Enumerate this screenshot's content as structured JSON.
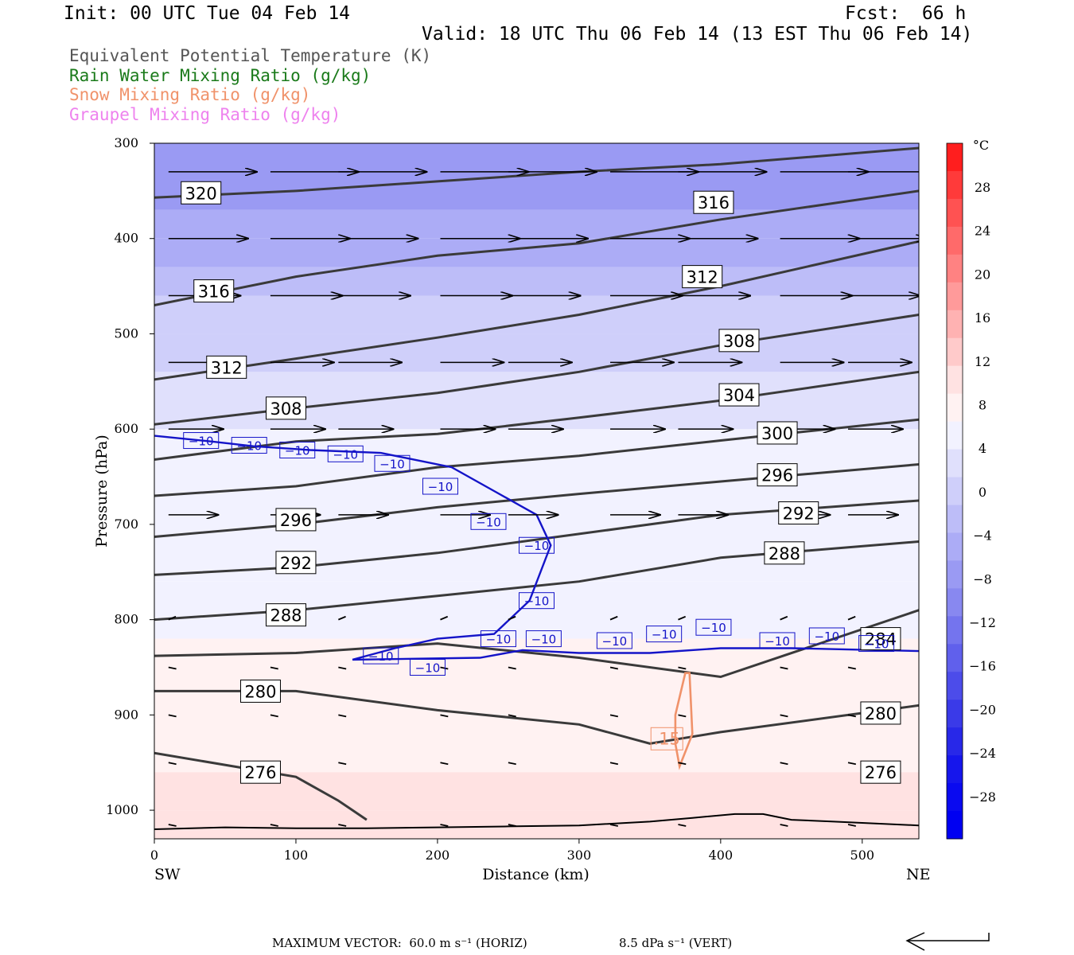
{
  "header": {
    "init": "Init: 00 UTC Tue 04 Feb 14",
    "fcst": "Fcst:  66 h",
    "valid": "Valid: 18 UTC Thu 06 Feb 14 (13 EST Thu 06 Feb 14)"
  },
  "legend": [
    {
      "label": "Equivalent Potential Temperature (K)",
      "color": "#555555"
    },
    {
      "label": "Rain Water Mixing Ratio (g/kg)",
      "color": "#1a7a1a"
    },
    {
      "label": "Snow Mixing Ratio (g/kg)",
      "color": "#f0926a"
    },
    {
      "label": "Graupel Mixing Ratio (g/kg)",
      "color": "#ee82ee"
    }
  ],
  "footer": {
    "vector_label": "MAXIMUM VECTOR:",
    "horiz": "60.0 m s⁻¹ (HORIZ)",
    "vert": "8.5 dPa s⁻¹ (VERT)"
  },
  "chart_data": {
    "type": "cross-section",
    "xlabel": "Distance (km)",
    "ylabel": "Pressure (hPa)",
    "xlim": [
      0,
      540
    ],
    "ylim": [
      1030,
      300
    ],
    "x_ticks": [
      0,
      100,
      200,
      300,
      400,
      500
    ],
    "y_ticks": [
      300,
      400,
      500,
      600,
      700,
      800,
      900,
      1000
    ],
    "x_end_labels": {
      "left": "SW",
      "right": "NE"
    },
    "colorbar": {
      "unit": "°C",
      "labels": [
        "28",
        "24",
        "20",
        "16",
        "12",
        "8",
        "4",
        "0",
        "−4",
        "−8",
        "−12",
        "−16",
        "−20",
        "−24",
        "−28"
      ],
      "levels": [
        28,
        24,
        20,
        16,
        12,
        8,
        4,
        0,
        -4,
        -8,
        -12,
        -16,
        -20,
        -24,
        -28
      ],
      "warm_colors": [
        "#ff1e1e",
        "#ff3a3a",
        "#ff5252",
        "#ff6a6a",
        "#ff8282",
        "#ff9a9a",
        "#ffb2b2",
        "#ffcaca",
        "#ffe2e2",
        "#fff2f2"
      ],
      "cold_colors": [
        "#f2f2ff",
        "#e0e0fc",
        "#cfcffa",
        "#bdbdf8",
        "#acacf6",
        "#9a9af3",
        "#8888f0",
        "#7474ee",
        "#6060ec",
        "#4c4cea",
        "#3a3ae8",
        "#2828e8",
        "#1616ec",
        "#0a0af0",
        "#0000f2"
      ]
    },
    "temperature_bands": [
      {
        "p": [
          1030,
          1000
        ],
        "temp_c": -2
      },
      {
        "p": [
          1000,
          960
        ],
        "temp_c": -5
      },
      {
        "p": [
          960,
          900
        ],
        "temp_c": -7
      },
      {
        "p": [
          900,
          820
        ],
        "temp_c": -8
      },
      {
        "p": [
          820,
          760
        ],
        "temp_c": -10
      },
      {
        "p": [
          760,
          680
        ],
        "temp_c": -12
      },
      {
        "p": [
          680,
          600
        ],
        "temp_c": -13
      },
      {
        "p": [
          600,
          540
        ],
        "temp_c": -16
      },
      {
        "p": [
          540,
          500
        ],
        "temp_c": -18
      },
      {
        "p": [
          500,
          460
        ],
        "temp_c": -20
      },
      {
        "p": [
          460,
          430
        ],
        "temp_c": -23
      },
      {
        "p": [
          430,
          400
        ],
        "temp_c": -26
      },
      {
        "p": [
          400,
          370
        ],
        "temp_c": -28
      },
      {
        "p": [
          370,
          300
        ],
        "temp_c": -31
      }
    ],
    "theta_e_contours": [
      {
        "value": 320,
        "label": "320",
        "points": [
          [
            0,
            357
          ],
          [
            100,
            350
          ],
          [
            200,
            340
          ],
          [
            300,
            330
          ],
          [
            400,
            322
          ],
          [
            540,
            305
          ]
        ],
        "labels_at": [
          [
            33,
            352
          ]
        ]
      },
      {
        "value": 316,
        "label": "316",
        "points": [
          [
            0,
            470
          ],
          [
            100,
            440
          ],
          [
            200,
            418
          ],
          [
            300,
            405
          ],
          [
            400,
            380
          ],
          [
            540,
            350
          ]
        ],
        "labels_at": [
          [
            42,
            455
          ],
          [
            395,
            362
          ]
        ]
      },
      {
        "value": 312,
        "label": "312",
        "points": [
          [
            0,
            548
          ],
          [
            100,
            526
          ],
          [
            200,
            504
          ],
          [
            300,
            480
          ],
          [
            400,
            450
          ],
          [
            540,
            403
          ]
        ],
        "labels_at": [
          [
            51,
            535
          ],
          [
            387,
            440
          ]
        ]
      },
      {
        "value": 308,
        "label": "308",
        "points": [
          [
            0,
            595
          ],
          [
            100,
            578
          ],
          [
            200,
            562
          ],
          [
            300,
            540
          ],
          [
            400,
            512
          ],
          [
            540,
            480
          ]
        ],
        "labels_at": [
          [
            93,
            578
          ],
          [
            413,
            507
          ]
        ]
      },
      {
        "value": 304,
        "label": "304",
        "points": [
          [
            0,
            632
          ],
          [
            100,
            613
          ],
          [
            200,
            605
          ],
          [
            300,
            588
          ],
          [
            400,
            570
          ],
          [
            540,
            540
          ]
        ],
        "labels_at": [
          [
            413,
            564
          ]
        ]
      },
      {
        "value": 300,
        "label": "300",
        "points": [
          [
            0,
            670
          ],
          [
            100,
            660
          ],
          [
            200,
            640
          ],
          [
            300,
            628
          ],
          [
            400,
            612
          ],
          [
            540,
            590
          ]
        ],
        "labels_at": [
          [
            440,
            604
          ]
        ]
      },
      {
        "value": 296,
        "label": "296",
        "points": [
          [
            0,
            713
          ],
          [
            100,
            700
          ],
          [
            200,
            682
          ],
          [
            300,
            668
          ],
          [
            400,
            655
          ],
          [
            540,
            637
          ]
        ],
        "labels_at": [
          [
            100,
            695
          ],
          [
            440,
            648
          ]
        ]
      },
      {
        "value": 292,
        "label": "292",
        "points": [
          [
            0,
            753
          ],
          [
            100,
            745
          ],
          [
            200,
            730
          ],
          [
            300,
            710
          ],
          [
            400,
            690
          ],
          [
            540,
            675
          ]
        ],
        "labels_at": [
          [
            100,
            740
          ],
          [
            455,
            688
          ]
        ]
      },
      {
        "value": 288,
        "label": "288",
        "points": [
          [
            0,
            800
          ],
          [
            100,
            790
          ],
          [
            200,
            775
          ],
          [
            300,
            760
          ],
          [
            400,
            735
          ],
          [
            540,
            718
          ]
        ],
        "labels_at": [
          [
            93,
            795
          ],
          [
            445,
            730
          ]
        ]
      },
      {
        "value": 284,
        "label": "284",
        "points": [
          [
            0,
            838
          ],
          [
            100,
            835
          ],
          [
            200,
            825
          ],
          [
            300,
            840
          ],
          [
            400,
            860
          ],
          [
            540,
            790
          ]
        ],
        "labels_at": [
          [
            513,
            820
          ]
        ]
      },
      {
        "value": 280,
        "label": "280",
        "points": [
          [
            0,
            875
          ],
          [
            100,
            875
          ],
          [
            200,
            895
          ],
          [
            300,
            910
          ],
          [
            350,
            930
          ],
          [
            400,
            918
          ],
          [
            540,
            890
          ]
        ],
        "labels_at": [
          [
            75,
            875
          ],
          [
            513,
            898
          ]
        ]
      },
      {
        "value": 276,
        "label": "276",
        "points": [
          [
            0,
            940
          ],
          [
            100,
            965
          ],
          [
            130,
            990
          ],
          [
            150,
            1010
          ]
        ],
        "labels_at": [
          [
            75,
            960
          ],
          [
            513,
            960
          ]
        ]
      }
    ],
    "temperature_contour_minus10": {
      "value": -10,
      "label": "−10",
      "points": [
        [
          0,
          607
        ],
        [
          40,
          613
        ],
        [
          70,
          618
        ],
        [
          110,
          622
        ],
        [
          160,
          625
        ],
        [
          210,
          640
        ],
        [
          240,
          665
        ],
        [
          270,
          690
        ],
        [
          280,
          722
        ],
        [
          265,
          780
        ],
        [
          240,
          815
        ],
        [
          200,
          820
        ],
        [
          170,
          830
        ],
        [
          140,
          842
        ],
        [
          230,
          840
        ],
        [
          260,
          832
        ],
        [
          300,
          835
        ],
        [
          350,
          835
        ],
        [
          400,
          830
        ],
        [
          450,
          830
        ],
        [
          540,
          833
        ]
      ],
      "labels_at": [
        [
          33,
          612
        ],
        [
          67,
          617
        ],
        [
          101,
          622
        ],
        [
          135,
          626
        ],
        [
          168,
          636
        ],
        [
          202,
          660
        ],
        [
          236,
          697
        ],
        [
          270,
          722
        ],
        [
          270,
          780
        ],
        [
          243,
          820
        ],
        [
          275,
          820
        ],
        [
          325,
          822
        ],
        [
          360,
          815
        ],
        [
          395,
          808
        ],
        [
          440,
          822
        ],
        [
          475,
          817
        ],
        [
          510,
          825
        ],
        [
          160,
          838
        ],
        [
          193,
          850
        ]
      ]
    },
    "snow_contour": {
      "value": 0.15,
      "label": ".15",
      "points": [
        [
          375,
          856
        ],
        [
          368,
          900
        ],
        [
          368,
          930
        ],
        [
          371,
          954
        ],
        [
          380,
          920
        ],
        [
          378,
          856
        ]
      ]
    },
    "wind_barbs_levels": [
      330,
      400,
      460,
      530,
      600,
      690,
      800,
      850,
      900,
      950,
      1015
    ]
  }
}
